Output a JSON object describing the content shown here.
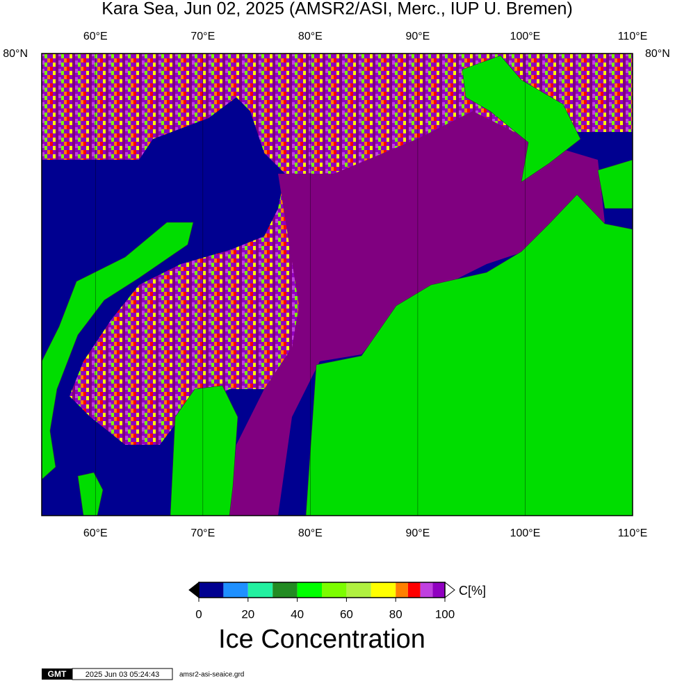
{
  "title": "Kara Sea, Jun 02, 2025 (AMSR2/ASI, Merc., IUP U. Bremen)",
  "map": {
    "lonlim": [
      55,
      110
    ],
    "lon_ticks": [
      {
        "value": 60,
        "label": "60°E"
      },
      {
        "value": 70,
        "label": "70°E"
      },
      {
        "value": 80,
        "label": "80°E"
      },
      {
        "value": 90,
        "label": "90°E"
      },
      {
        "value": 100,
        "label": "100°E"
      },
      {
        "value": 110,
        "label": "110°E"
      }
    ],
    "lat_label": "80°N"
  },
  "colorbar": {
    "bins": [
      0,
      10,
      20,
      30,
      40,
      50,
      60,
      70,
      80,
      85,
      90,
      95,
      100
    ],
    "colors": [
      "#000090",
      "#1e90ff",
      "#22f0a0",
      "#228b22",
      "#00ff00",
      "#7cfc00",
      "#b0f040",
      "#ffff00",
      "#ff8000",
      "#ff0000",
      "#c040e0",
      "#9000c0"
    ],
    "ticks": [
      0,
      20,
      40,
      60,
      80,
      100
    ],
    "unit": "C[%]",
    "label": "Ice Concentration"
  },
  "footer": {
    "logo": "GMT",
    "timestamp": "2025 Jun 03 05:24:43",
    "file": "amsr2-asi-seaice.grd"
  }
}
